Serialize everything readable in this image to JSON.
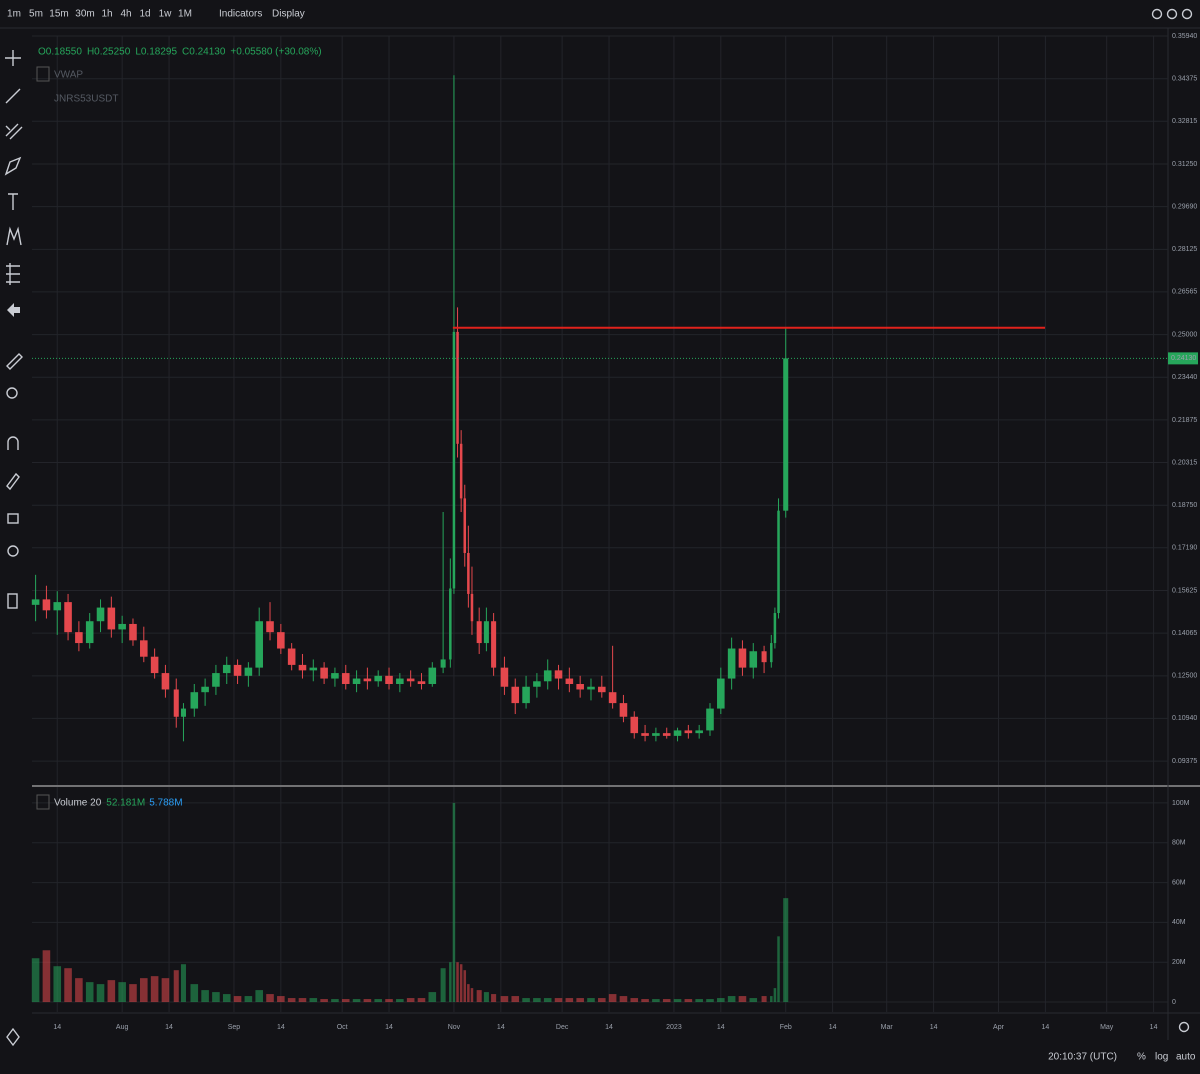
{
  "toolbar": {
    "intervals": [
      "1m",
      "5m",
      "15m",
      "30m",
      "1h",
      "4h",
      "1d",
      "1w",
      "1M"
    ],
    "active_interval": "1d",
    "menus": [
      "Indicators",
      "Display"
    ]
  },
  "legend": {
    "ohlc": [
      "O0.18550",
      "H0.25250",
      "L0.18295",
      "C0.24130",
      "+0.05580 (+30.08%)"
    ],
    "indicators": [
      "VWAP",
      "JNRS53USDT"
    ],
    "volume_title": "Volume 20",
    "volume_values": [
      "52.181M",
      "5.788M"
    ]
  },
  "chart_data": {
    "type": "candlestick",
    "x": [
      7,
      10,
      13,
      16,
      19,
      22,
      25,
      28,
      31,
      34,
      37,
      40,
      43,
      46,
      48,
      51,
      54,
      57,
      60,
      63,
      66,
      69,
      72,
      75,
      78,
      81,
      84,
      87,
      90,
      93,
      96,
      99,
      102,
      105,
      108,
      111,
      114,
      117,
      120,
      122,
      123,
      124,
      125,
      126,
      127,
      128,
      130,
      132,
      134,
      137,
      140,
      143,
      146,
      149,
      152,
      155,
      158,
      161,
      164,
      167,
      170,
      173,
      176,
      179,
      182,
      185,
      188,
      191,
      194,
      197,
      200,
      203,
      206,
      209,
      211,
      212,
      213,
      215
    ],
    "open": [
      0.151,
      0.153,
      0.149,
      0.152,
      0.141,
      0.137,
      0.145,
      0.15,
      0.142,
      0.144,
      0.138,
      0.132,
      0.126,
      0.12,
      0.11,
      0.113,
      0.119,
      0.121,
      0.126,
      0.129,
      0.125,
      0.128,
      0.145,
      0.141,
      0.135,
      0.129,
      0.127,
      0.128,
      0.124,
      0.126,
      0.122,
      0.124,
      0.123,
      0.125,
      0.122,
      0.124,
      0.123,
      0.122,
      0.128,
      0.131,
      0.157,
      0.251,
      0.21,
      0.19,
      0.17,
      0.155,
      0.145,
      0.137,
      0.145,
      0.128,
      0.121,
      0.115,
      0.121,
      0.123,
      0.127,
      0.124,
      0.122,
      0.12,
      0.121,
      0.119,
      0.115,
      0.11,
      0.104,
      0.103,
      0.104,
      0.103,
      0.105,
      0.104,
      0.105,
      0.113,
      0.124,
      0.135,
      0.128,
      0.134,
      0.13,
      0.137,
      0.148,
      0.1855
    ],
    "high": [
      0.162,
      0.158,
      0.156,
      0.155,
      0.145,
      0.148,
      0.153,
      0.154,
      0.147,
      0.146,
      0.143,
      0.135,
      0.129,
      0.124,
      0.115,
      0.122,
      0.124,
      0.129,
      0.132,
      0.131,
      0.13,
      0.15,
      0.152,
      0.144,
      0.137,
      0.133,
      0.131,
      0.13,
      0.128,
      0.129,
      0.127,
      0.128,
      0.127,
      0.128,
      0.126,
      0.127,
      0.126,
      0.13,
      0.185,
      0.168,
      0.345,
      0.26,
      0.215,
      0.195,
      0.18,
      0.165,
      0.15,
      0.15,
      0.148,
      0.132,
      0.124,
      0.125,
      0.126,
      0.131,
      0.129,
      0.128,
      0.125,
      0.124,
      0.125,
      0.136,
      0.118,
      0.112,
      0.107,
      0.106,
      0.106,
      0.106,
      0.107,
      0.107,
      0.115,
      0.128,
      0.139,
      0.138,
      0.137,
      0.136,
      0.14,
      0.15,
      0.19,
      0.2525
    ],
    "low": [
      0.145,
      0.146,
      0.14,
      0.138,
      0.134,
      0.135,
      0.141,
      0.139,
      0.137,
      0.136,
      0.13,
      0.124,
      0.117,
      0.106,
      0.101,
      0.11,
      0.114,
      0.118,
      0.122,
      0.122,
      0.121,
      0.125,
      0.138,
      0.133,
      0.127,
      0.124,
      0.123,
      0.122,
      0.121,
      0.12,
      0.119,
      0.12,
      0.121,
      0.12,
      0.119,
      0.121,
      0.12,
      0.121,
      0.126,
      0.128,
      0.155,
      0.205,
      0.185,
      0.165,
      0.15,
      0.14,
      0.133,
      0.134,
      0.125,
      0.118,
      0.111,
      0.113,
      0.117,
      0.12,
      0.12,
      0.119,
      0.117,
      0.116,
      0.117,
      0.113,
      0.108,
      0.102,
      0.101,
      0.101,
      0.102,
      0.101,
      0.102,
      0.102,
      0.103,
      0.111,
      0.12,
      0.125,
      0.124,
      0.126,
      0.128,
      0.135,
      0.146,
      0.18295
    ],
    "close": [
      0.153,
      0.149,
      0.152,
      0.141,
      0.137,
      0.145,
      0.15,
      0.142,
      0.144,
      0.138,
      0.132,
      0.126,
      0.12,
      0.11,
      0.113,
      0.119,
      0.121,
      0.126,
      0.129,
      0.125,
      0.128,
      0.145,
      0.141,
      0.135,
      0.129,
      0.127,
      0.128,
      0.124,
      0.126,
      0.122,
      0.124,
      0.123,
      0.125,
      0.122,
      0.124,
      0.123,
      0.122,
      0.128,
      0.131,
      0.157,
      0.251,
      0.21,
      0.19,
      0.17,
      0.155,
      0.145,
      0.137,
      0.145,
      0.128,
      0.121,
      0.115,
      0.121,
      0.123,
      0.127,
      0.124,
      0.122,
      0.12,
      0.121,
      0.119,
      0.115,
      0.11,
      0.104,
      0.103,
      0.104,
      0.103,
      0.105,
      0.104,
      0.105,
      0.113,
      0.124,
      0.135,
      0.128,
      0.134,
      0.13,
      0.137,
      0.148,
      0.1855,
      0.2413
    ],
    "volume": [
      22000000,
      26000000,
      18000000,
      17000000,
      12000000,
      10000000,
      9000000,
      11000000,
      10000000,
      9000000,
      12000000,
      13000000,
      12000000,
      16000000,
      19000000,
      9000000,
      6000000,
      5000000,
      4000000,
      3000000,
      3000000,
      6000000,
      4000000,
      3000000,
      2000000,
      2000000,
      2000000,
      1500000,
      1500000,
      1500000,
      1500000,
      1500000,
      1500000,
      1500000,
      1500000,
      2000000,
      2000000,
      5000000,
      17000000,
      20000000,
      100000000,
      20000000,
      19000000,
      16000000,
      9000000,
      7000000,
      6000000,
      5000000,
      4000000,
      3000000,
      3000000,
      2000000,
      2000000,
      2000000,
      2000000,
      2000000,
      2000000,
      2000000,
      2000000,
      4000000,
      3000000,
      2000000,
      1500000,
      1500000,
      1500000,
      1500000,
      1500000,
      1500000,
      1500000,
      2000000,
      3000000,
      3000000,
      2000000,
      3000000,
      3000000,
      7000000,
      33000000,
      52181000
    ],
    "xlim": [
      6,
      321
    ],
    "xticks": [
      {
        "value": 13,
        "label": "14"
      },
      {
        "value": 31,
        "label": "Aug"
      },
      {
        "value": 44,
        "label": "14"
      },
      {
        "value": 62,
        "label": "Sep"
      },
      {
        "value": 75,
        "label": "14"
      },
      {
        "value": 92,
        "label": "Oct"
      },
      {
        "value": 105,
        "label": "14"
      },
      {
        "value": 123,
        "label": "Nov"
      },
      {
        "value": 136,
        "label": "14"
      },
      {
        "value": 153,
        "label": "Dec"
      },
      {
        "value": 166,
        "label": "14"
      },
      {
        "value": 184,
        "label": "2023"
      },
      {
        "value": 197,
        "label": "14"
      },
      {
        "value": 215,
        "label": "Feb"
      },
      {
        "value": 228,
        "label": "14"
      },
      {
        "value": 243,
        "label": "Mar"
      },
      {
        "value": 256,
        "label": "14"
      },
      {
        "value": 274,
        "label": "Apr"
      },
      {
        "value": 287,
        "label": "14"
      },
      {
        "value": 304,
        "label": "May"
      },
      {
        "value": 317,
        "label": "14"
      }
    ],
    "ylim": [
      0.085,
      0.3594
    ],
    "yticks": [
      0.09375,
      {
        "value": 0.1094,
        "label": "0.10940"
      },
      {
        "value": 0.125,
        "label": "0.12500"
      },
      0.14065,
      0.15625,
      {
        "value": 0.1719,
        "label": "0.17190"
      },
      {
        "value": 0.1875,
        "label": "0.18750"
      },
      0.20315,
      0.21875,
      {
        "value": 0.2344,
        "label": "0.23440"
      },
      {
        "value": 0.25,
        "label": "0.25000"
      },
      0.26565,
      0.28125,
      {
        "value": 0.2969,
        "label": "0.29690"
      },
      {
        "value": 0.3125,
        "label": "0.31250"
      },
      0.32815,
      0.34375,
      {
        "value": 0.3594,
        "label": "0.35940"
      }
    ],
    "volume_ylim": [
      -5000000,
      108000000
    ],
    "volume_yticks": [
      0,
      {
        "value": 20000000,
        "label": "20M"
      },
      {
        "value": 40000000,
        "label": "40M"
      },
      {
        "value": 60000000,
        "label": "60M"
      },
      {
        "value": 80000000,
        "label": "80M"
      },
      {
        "value": 100000000,
        "label": "100M"
      }
    ],
    "last_price": {
      "value": 0.2413,
      "label": "0.24130"
    },
    "horizontal_line": {
      "value": 0.2525,
      "x": [
        122.7,
        286.9
      ],
      "color": "#e0221c"
    },
    "up_color": "#26a65b",
    "down_color": "#e5484d",
    "grid": true
  },
  "status": {
    "clock": "20:10:37 (UTC)",
    "percent": "%",
    "log": "log",
    "auto": "auto"
  }
}
